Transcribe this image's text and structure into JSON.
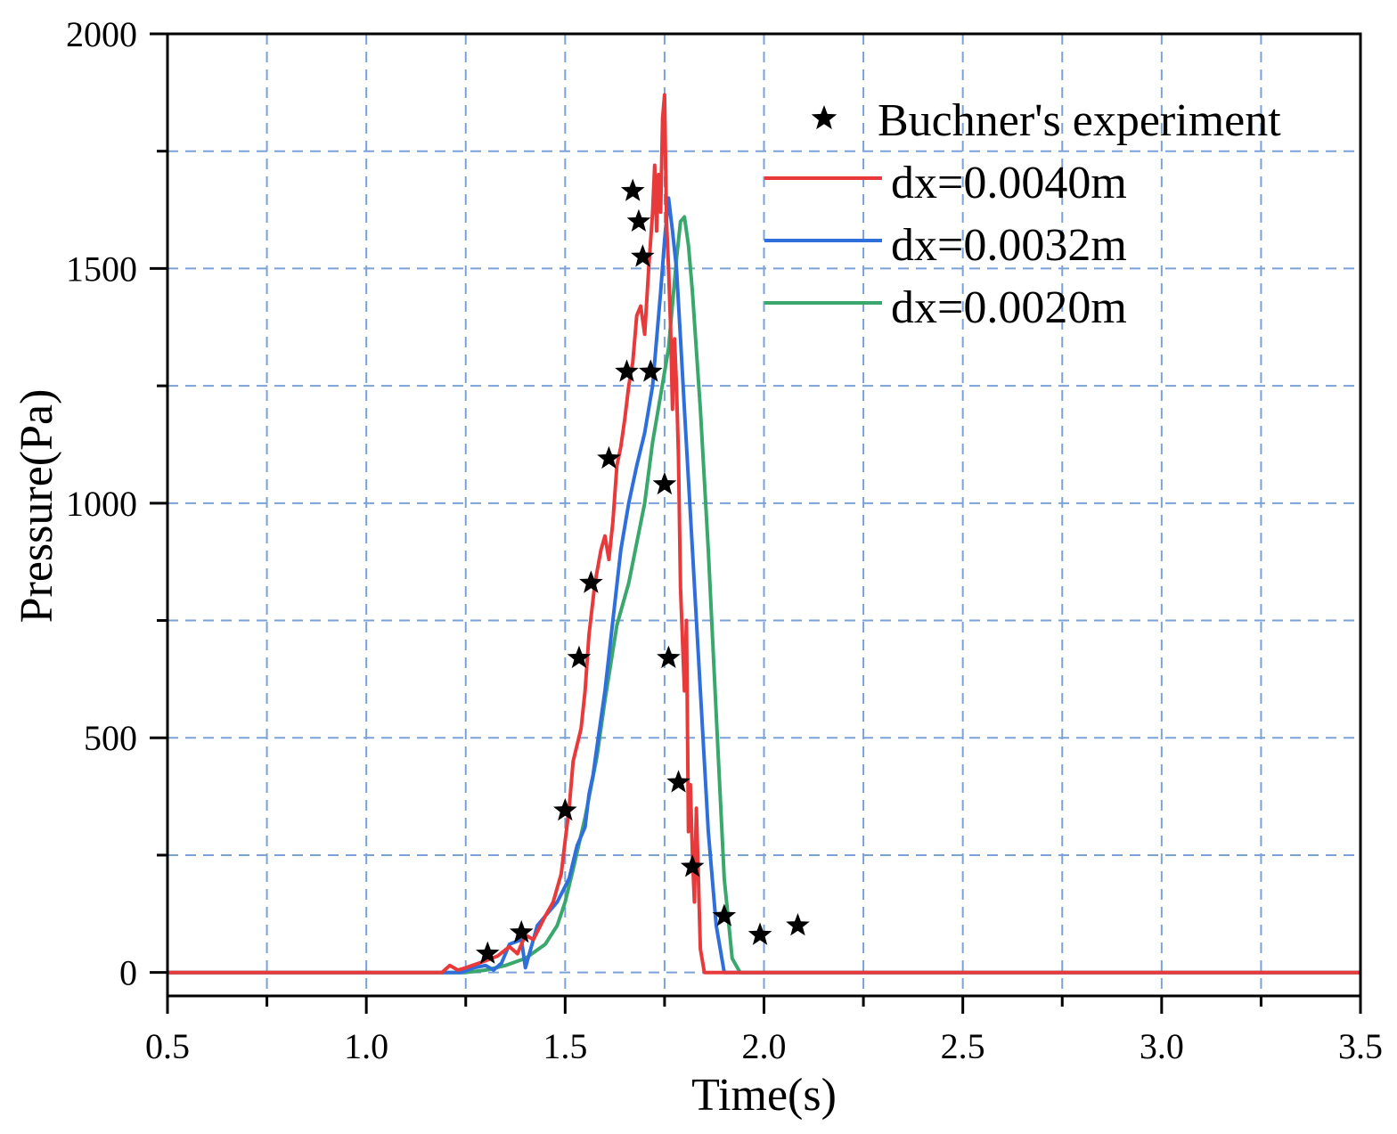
{
  "chart_data": {
    "type": "line",
    "title": "",
    "xlabel": "Time(s)",
    "ylabel": "Pressure(Pa)",
    "xlim": [
      0.5,
      3.5
    ],
    "ylim": [
      -50,
      2000
    ],
    "xticks": [
      0.5,
      1.0,
      1.5,
      2.0,
      2.5,
      3.0,
      3.5
    ],
    "xtick_labels": [
      "0.5",
      "1.0",
      "1.5",
      "2.0",
      "2.5",
      "3.0",
      "3.5"
    ],
    "yticks": [
      0,
      500,
      1000,
      1500,
      2000
    ],
    "ytick_labels": [
      "0",
      "500",
      "1000",
      "1500",
      "2000"
    ],
    "x_minor_step": 0.25,
    "y_minor_step": 250,
    "grid": true,
    "legend_position": "top-right",
    "series": [
      {
        "name": "Buchner's experiment",
        "kind": "scatter",
        "marker": "star",
        "color": "#000000",
        "x": [
          1.305,
          1.39,
          1.5,
          1.535,
          1.565,
          1.61,
          1.655,
          1.67,
          1.685,
          1.695,
          1.715,
          1.75,
          1.76,
          1.785,
          1.82,
          1.9,
          1.99,
          2.085
        ],
        "y": [
          40,
          85,
          345,
          670,
          830,
          1095,
          1280,
          1665,
          1600,
          1525,
          1280,
          1040,
          670,
          405,
          225,
          120,
          80,
          100
        ]
      },
      {
        "name": "dx=0.0040m",
        "kind": "line",
        "color": "#e8393b",
        "x": [
          0.5,
          1.19,
          1.21,
          1.23,
          1.25,
          1.3,
          1.33,
          1.36,
          1.38,
          1.4,
          1.42,
          1.45,
          1.47,
          1.49,
          1.5,
          1.51,
          1.52,
          1.54,
          1.55,
          1.56,
          1.575,
          1.59,
          1.6,
          1.61,
          1.62,
          1.63,
          1.64,
          1.65,
          1.66,
          1.67,
          1.68,
          1.69,
          1.7,
          1.71,
          1.72,
          1.725,
          1.73,
          1.735,
          1.74,
          1.745,
          1.75,
          1.755,
          1.76,
          1.765,
          1.77,
          1.775,
          1.78,
          1.785,
          1.79,
          1.8,
          1.805,
          1.81,
          1.815,
          1.82,
          1.825,
          1.83,
          1.835,
          1.84,
          1.85,
          1.86,
          3.5
        ],
        "y": [
          0,
          0,
          15,
          5,
          10,
          25,
          35,
          55,
          40,
          80,
          70,
          120,
          150,
          210,
          280,
          350,
          450,
          520,
          600,
          720,
          830,
          900,
          930,
          880,
          960,
          1080,
          1120,
          1180,
          1250,
          1300,
          1400,
          1420,
          1360,
          1500,
          1620,
          1720,
          1580,
          1700,
          1620,
          1820,
          1870,
          1600,
          1500,
          1380,
          1200,
          1350,
          1250,
          1100,
          820,
          600,
          750,
          300,
          400,
          250,
          150,
          350,
          200,
          50,
          0,
          0,
          0
        ]
      },
      {
        "name": "dx=0.0032m",
        "kind": "line",
        "color": "#2f6fdc",
        "x": [
          0.5,
          1.24,
          1.27,
          1.3,
          1.32,
          1.34,
          1.36,
          1.39,
          1.4,
          1.43,
          1.45,
          1.48,
          1.51,
          1.53,
          1.55,
          1.56,
          1.57,
          1.58,
          1.6,
          1.62,
          1.64,
          1.66,
          1.68,
          1.7,
          1.72,
          1.73,
          1.74,
          1.75,
          1.76,
          1.77,
          1.78,
          1.79,
          1.8,
          1.82,
          1.84,
          1.86,
          1.88,
          1.9,
          1.92,
          3.5
        ],
        "y": [
          0,
          0,
          10,
          15,
          5,
          20,
          60,
          70,
          10,
          100,
          120,
          150,
          200,
          270,
          310,
          380,
          420,
          480,
          600,
          750,
          900,
          1000,
          1080,
          1150,
          1250,
          1350,
          1450,
          1560,
          1650,
          1580,
          1500,
          1350,
          1200,
          900,
          600,
          300,
          100,
          0,
          0,
          0
        ]
      },
      {
        "name": "dx=0.0020m",
        "kind": "line",
        "color": "#3aa76d",
        "x": [
          0.5,
          1.25,
          1.3,
          1.35,
          1.4,
          1.45,
          1.48,
          1.5,
          1.52,
          1.55,
          1.58,
          1.6,
          1.63,
          1.66,
          1.7,
          1.72,
          1.74,
          1.76,
          1.78,
          1.79,
          1.8,
          1.81,
          1.82,
          1.84,
          1.86,
          1.88,
          1.9,
          1.92,
          1.94,
          3.5
        ],
        "y": [
          0,
          0,
          5,
          15,
          30,
          60,
          100,
          150,
          220,
          330,
          460,
          580,
          740,
          830,
          1000,
          1130,
          1230,
          1330,
          1520,
          1600,
          1610,
          1550,
          1450,
          1200,
          900,
          550,
          200,
          30,
          0,
          0
        ]
      }
    ]
  }
}
